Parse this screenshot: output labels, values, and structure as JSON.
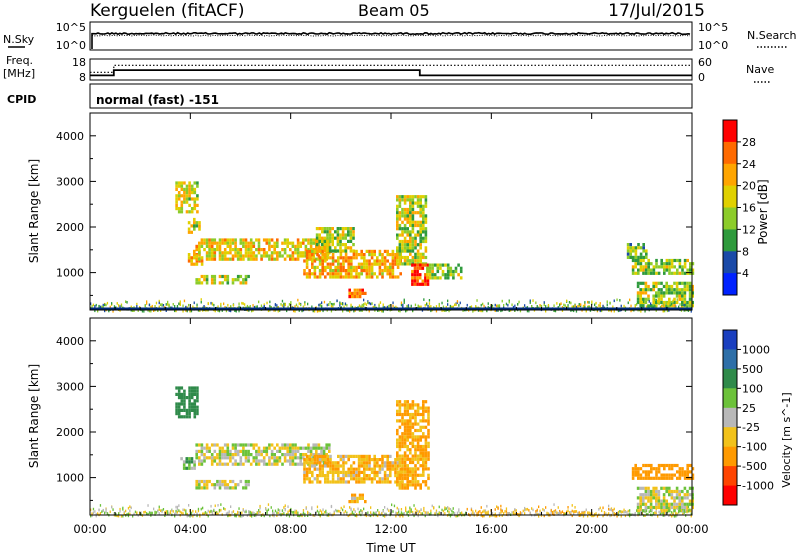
{
  "header": {
    "station": "Kerguelen (fitACF)",
    "beam": "Beam 05",
    "date": "17/Jul/2015"
  },
  "noise_panel": {
    "left_label": "N.Sky",
    "right_label": "N.Search",
    "left_ticks": [
      "10^5",
      "10^0"
    ],
    "right_ticks": [
      "10^5",
      "10^0"
    ]
  },
  "freq_panel": {
    "left_label_line1": "Freq.",
    "left_label_line2": "[MHz]",
    "left_ticks": [
      "18",
      "8"
    ],
    "right_label": "Nave",
    "right_ticks": [
      "60",
      "0"
    ],
    "cpid_label": "CPID",
    "cpid_text": "normal (fast) -151"
  },
  "colors": {
    "frame": "#000000",
    "navy_baseline": "#002a7a"
  },
  "chart_data": [
    {
      "type": "line",
      "panel": "noise",
      "series": [
        {
          "name": "N.Sky",
          "style": "solid"
        },
        {
          "name": "N.Search",
          "style": "dotted"
        }
      ],
      "x_range_hours": [
        0,
        24
      ]
    },
    {
      "type": "line",
      "panel": "frequency",
      "series": [
        {
          "name": "Freq.",
          "style": "solid",
          "steps": [
            {
              "from": 0,
              "to": 0.95,
              "value": 10.2
            },
            {
              "from": 0.95,
              "to": 13.15,
              "value": 12.7
            },
            {
              "from": 13.15,
              "to": 24,
              "value": 10.2
            }
          ]
        },
        {
          "name": "Nave",
          "style": "dotted",
          "steps": [
            {
              "from": 0,
              "to": 0.95,
              "value": 22
            },
            {
              "from": 0.95,
              "to": 24,
              "value": 42
            }
          ]
        }
      ],
      "ylim_freq": [
        8,
        18
      ],
      "ylim_nave": [
        0,
        60
      ]
    },
    {
      "type": "heatmap",
      "panel": "power",
      "ylabel": "Slant Range [km]",
      "ylim": [
        180,
        4500
      ],
      "yticks": [
        1000,
        2000,
        3000,
        4000
      ],
      "colorbar": {
        "label": "Power [dB]",
        "ticks": [
          "28",
          "24",
          "20",
          "16",
          "12",
          "8",
          "4"
        ],
        "colors": [
          "#ff0000",
          "#ff6a00",
          "#ffa500",
          "#e0d000",
          "#8ccc2a",
          "#2e9a3c",
          "#1a4aa8",
          "#0022ff"
        ]
      },
      "echo_regions": [
        {
          "t0": 3.4,
          "t1": 4.3,
          "r0": 2300,
          "r1": 3000,
          "level": 0.55
        },
        {
          "t0": 3.9,
          "t1": 4.4,
          "r0": 1900,
          "r1": 2200,
          "level": 0.55
        },
        {
          "t0": 3.9,
          "t1": 4.5,
          "r0": 1200,
          "r1": 1500,
          "level": 0.7
        },
        {
          "t0": 4.2,
          "t1": 9.5,
          "r0": 1300,
          "r1": 1750,
          "level": 0.6
        },
        {
          "t0": 4.2,
          "t1": 6.3,
          "r0": 750,
          "r1": 950,
          "level": 0.5
        },
        {
          "t0": 8.5,
          "t1": 12.4,
          "r0": 900,
          "r1": 1500,
          "level": 0.7
        },
        {
          "t0": 9.0,
          "t1": 10.5,
          "r0": 1500,
          "r1": 2000,
          "level": 0.5
        },
        {
          "t0": 10.3,
          "t1": 11.0,
          "r0": 500,
          "r1": 650,
          "level": 0.85
        },
        {
          "t0": 12.2,
          "t1": 13.4,
          "r0": 1200,
          "r1": 2700,
          "level": 0.5
        },
        {
          "t0": 12.8,
          "t1": 13.5,
          "r0": 750,
          "r1": 1200,
          "level": 0.95
        },
        {
          "t0": 13.4,
          "t1": 14.8,
          "r0": 850,
          "r1": 1200,
          "level": 0.45
        },
        {
          "t0": 21.6,
          "t1": 24.0,
          "r0": 1000,
          "r1": 1300,
          "level": 0.45
        },
        {
          "t0": 21.4,
          "t1": 22.2,
          "r0": 1350,
          "r1": 1650,
          "level": 0.4
        },
        {
          "t0": 21.8,
          "t1": 24.0,
          "r0": 300,
          "r1": 800,
          "level": 0.45
        }
      ],
      "ground_clutter": {
        "t0": 0,
        "t1": 24,
        "r0": 180,
        "r1": 450
      }
    },
    {
      "type": "heatmap",
      "panel": "velocity",
      "xlabel": "Time UT",
      "ylabel": "Slant Range [km]",
      "ylim": [
        180,
        4500
      ],
      "yticks": [
        1000,
        2000,
        3000,
        4000
      ],
      "xticks": [
        "00:00",
        "04:00",
        "08:00",
        "12:00",
        "16:00",
        "20:00",
        "00:00"
      ],
      "xlim_hours": [
        0,
        24
      ],
      "colorbar": {
        "label": "Velocity [m s^-1]",
        "ticks": [
          "1000",
          "500",
          "100",
          "25",
          "-25",
          "-100",
          "-500",
          "-1000"
        ],
        "colors": [
          "#1a3fbf",
          "#2e6fa8",
          "#2f8a4a",
          "#6cc23a",
          "#b8b8b8",
          "#f2c21a",
          "#ff9a00",
          "#ff4400",
          "#ff0000"
        ]
      },
      "echo_regions": [
        {
          "t0": 3.4,
          "t1": 4.3,
          "r0": 2300,
          "r1": 3000,
          "vel": 350
        },
        {
          "t0": 3.6,
          "t1": 4.2,
          "r0": 1200,
          "r1": 1450,
          "vel": 80
        },
        {
          "t0": 4.2,
          "t1": 9.5,
          "r0": 1300,
          "r1": 1750,
          "vel": 0
        },
        {
          "t0": 4.2,
          "t1": 6.3,
          "r0": 750,
          "r1": 950,
          "vel": 0
        },
        {
          "t0": 8.5,
          "t1": 12.4,
          "r0": 900,
          "r1": 1500,
          "vel": -90
        },
        {
          "t0": 10.3,
          "t1": 11.0,
          "r0": 500,
          "r1": 650,
          "vel": -60
        },
        {
          "t0": 12.2,
          "t1": 13.5,
          "r0": 800,
          "r1": 2700,
          "vel": -120
        },
        {
          "t0": 21.6,
          "t1": 24.0,
          "r0": 1000,
          "r1": 1300,
          "vel": -400
        },
        {
          "t0": 21.8,
          "t1": 24.0,
          "r0": 300,
          "r1": 800,
          "vel": 0
        }
      ],
      "ground_clutter": {
        "t0": 0,
        "t1": 24,
        "r0": 180,
        "r1": 450
      }
    }
  ]
}
